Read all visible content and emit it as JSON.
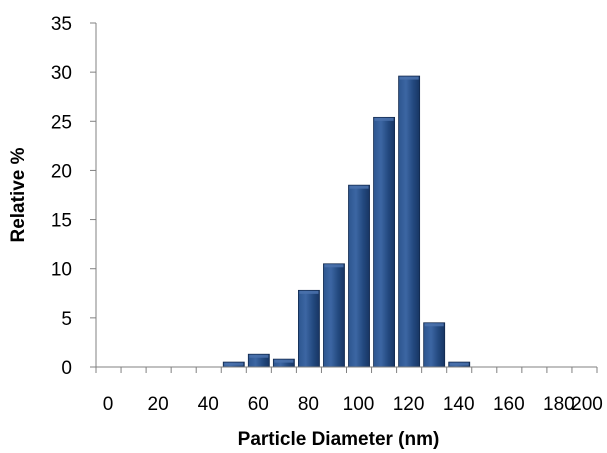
{
  "chart_data": {
    "type": "bar",
    "title": "",
    "xlabel": "Particle Diameter (nm)",
    "ylabel": "Relative %",
    "ylim": [
      0,
      35
    ],
    "xlim": [
      0,
      200
    ],
    "x_ticks": [
      "0",
      "20",
      "40",
      "60",
      "80",
      "100",
      "120",
      "140",
      "160",
      "180",
      "200"
    ],
    "y_ticks": [
      "0",
      "5",
      "10",
      "15",
      "20",
      "25",
      "30",
      "35"
    ],
    "bin_width": 10,
    "bins": [
      50,
      60,
      70,
      80,
      90,
      100,
      110,
      120,
      130,
      140
    ],
    "values": [
      0.5,
      1.3,
      0.8,
      7.8,
      10.5,
      18.5,
      25.4,
      29.6,
      4.5,
      0.5
    ],
    "grid": false,
    "legend": "none",
    "bar_color": "#1f3f6e",
    "bar_highlight": "#4b72ad"
  }
}
